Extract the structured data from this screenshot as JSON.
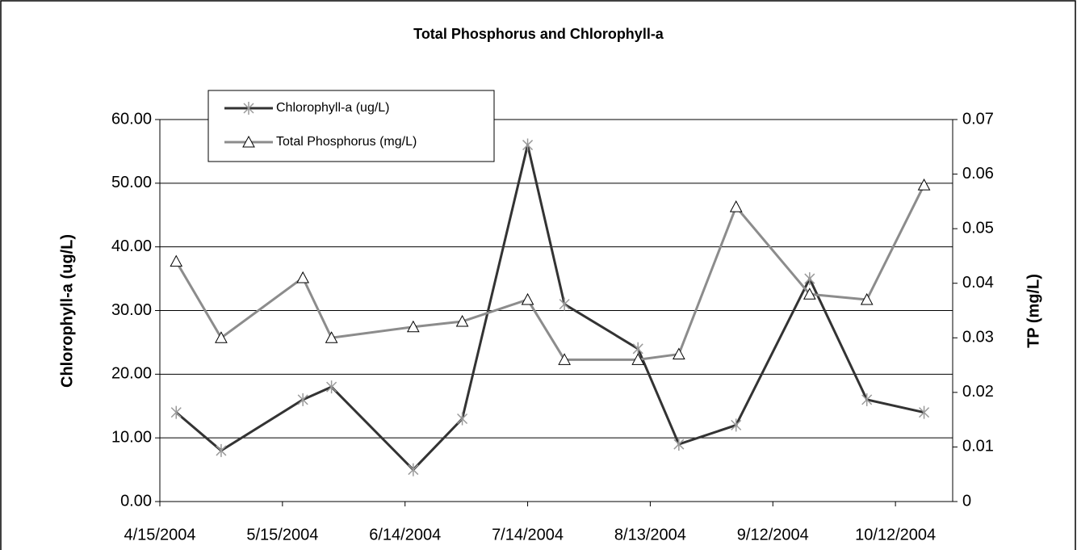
{
  "chart_data": {
    "type": "line",
    "title": "Total Phosphorus and Chlorophyll-a",
    "y_label": "Chlorophyll-a  (ug/L)",
    "y2_label": "TP (mg/L)",
    "x": [
      "4/19/2004",
      "4/30/2004",
      "5/20/2004",
      "5/27/2004",
      "6/16/2004",
      "6/28/2004",
      "7/14/2004",
      "7/23/2004",
      "8/10/2004",
      "8/20/2004",
      "9/3/2004",
      "9/21/2004",
      "10/5/2004",
      "10/19/2004"
    ],
    "xlim": [
      "4/15/2004",
      "10/26/2004"
    ],
    "xticks": [
      "4/15/2004",
      "5/15/2004",
      "6/14/2004",
      "7/14/2004",
      "8/13/2004",
      "9/12/2004",
      "10/12/2004"
    ],
    "ylim": [
      0,
      60
    ],
    "yticks": [
      {
        "value": 0,
        "label": "0.00"
      },
      {
        "value": 10,
        "label": "10.00"
      },
      {
        "value": 20,
        "label": "20.00"
      },
      {
        "value": 30,
        "label": "30.00"
      },
      {
        "value": 40,
        "label": "40.00"
      },
      {
        "value": 50,
        "label": "50.00"
      },
      {
        "value": 60,
        "label": "60.00"
      }
    ],
    "y2lim": [
      0,
      0.07
    ],
    "y2ticks": [
      0,
      0.01,
      0.02,
      0.03,
      0.04,
      0.05,
      0.06,
      0.07
    ],
    "grid": true,
    "legend": "upper left",
    "series": [
      {
        "name": "Chlorophyll-a (ug/L)",
        "color": "#333333",
        "marker": "asterisk",
        "values": [
          14,
          8,
          16,
          18,
          5,
          13,
          56,
          31,
          24,
          9,
          12,
          35,
          16,
          14
        ]
      },
      {
        "name": "Total Phosphorus (mg/L)",
        "color": "#8c8c8c",
        "marker": "triangle",
        "axis": "y2",
        "values": [
          0.044,
          0.03,
          0.041,
          0.03,
          0.032,
          0.033,
          0.037,
          0.026,
          0.026,
          0.027,
          0.054,
          0.038,
          0.037,
          0.058
        ]
      }
    ]
  }
}
